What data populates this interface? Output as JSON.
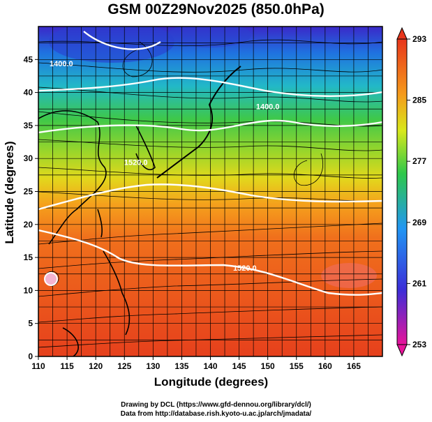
{
  "title": "GSM 00Z29Nov2025 (850.0hPa)",
  "x_axis": {
    "label": "Longitude (degrees)",
    "ticks": [
      110,
      115,
      120,
      125,
      130,
      135,
      140,
      145,
      150,
      155,
      160,
      165
    ],
    "range": [
      110,
      170
    ]
  },
  "y_axis": {
    "label": "Latitude  (degrees)",
    "ticks": [
      0,
      5,
      10,
      15,
      20,
      25,
      30,
      35,
      40,
      45
    ],
    "range": [
      0,
      50
    ]
  },
  "colorbar": {
    "ticks": [
      293,
      285,
      277,
      269,
      261,
      253
    ],
    "range": [
      253,
      293
    ],
    "colors": [
      "#e8149a",
      "#3b2ed8",
      "#2196f3",
      "#2ec84a",
      "#d8e81c",
      "#f59a1c",
      "#e8361c"
    ]
  },
  "contour_labels": [
    {
      "text": "1400.0",
      "lon": 114,
      "lat": 44
    },
    {
      "text": "1400.0",
      "lon": 150,
      "lat": 37.5
    },
    {
      "text": "1520.0",
      "lon": 127,
      "lat": 29
    },
    {
      "text": "1520.0",
      "lon": 146,
      "lat": 13
    }
  ],
  "credits": [
    "Drawing by DCL (https://www.gfd-dennou.org/library/dcl/)",
    "Data from http://database.rish.kyoto-u.ac.jp/arch/jmadata/"
  ]
}
